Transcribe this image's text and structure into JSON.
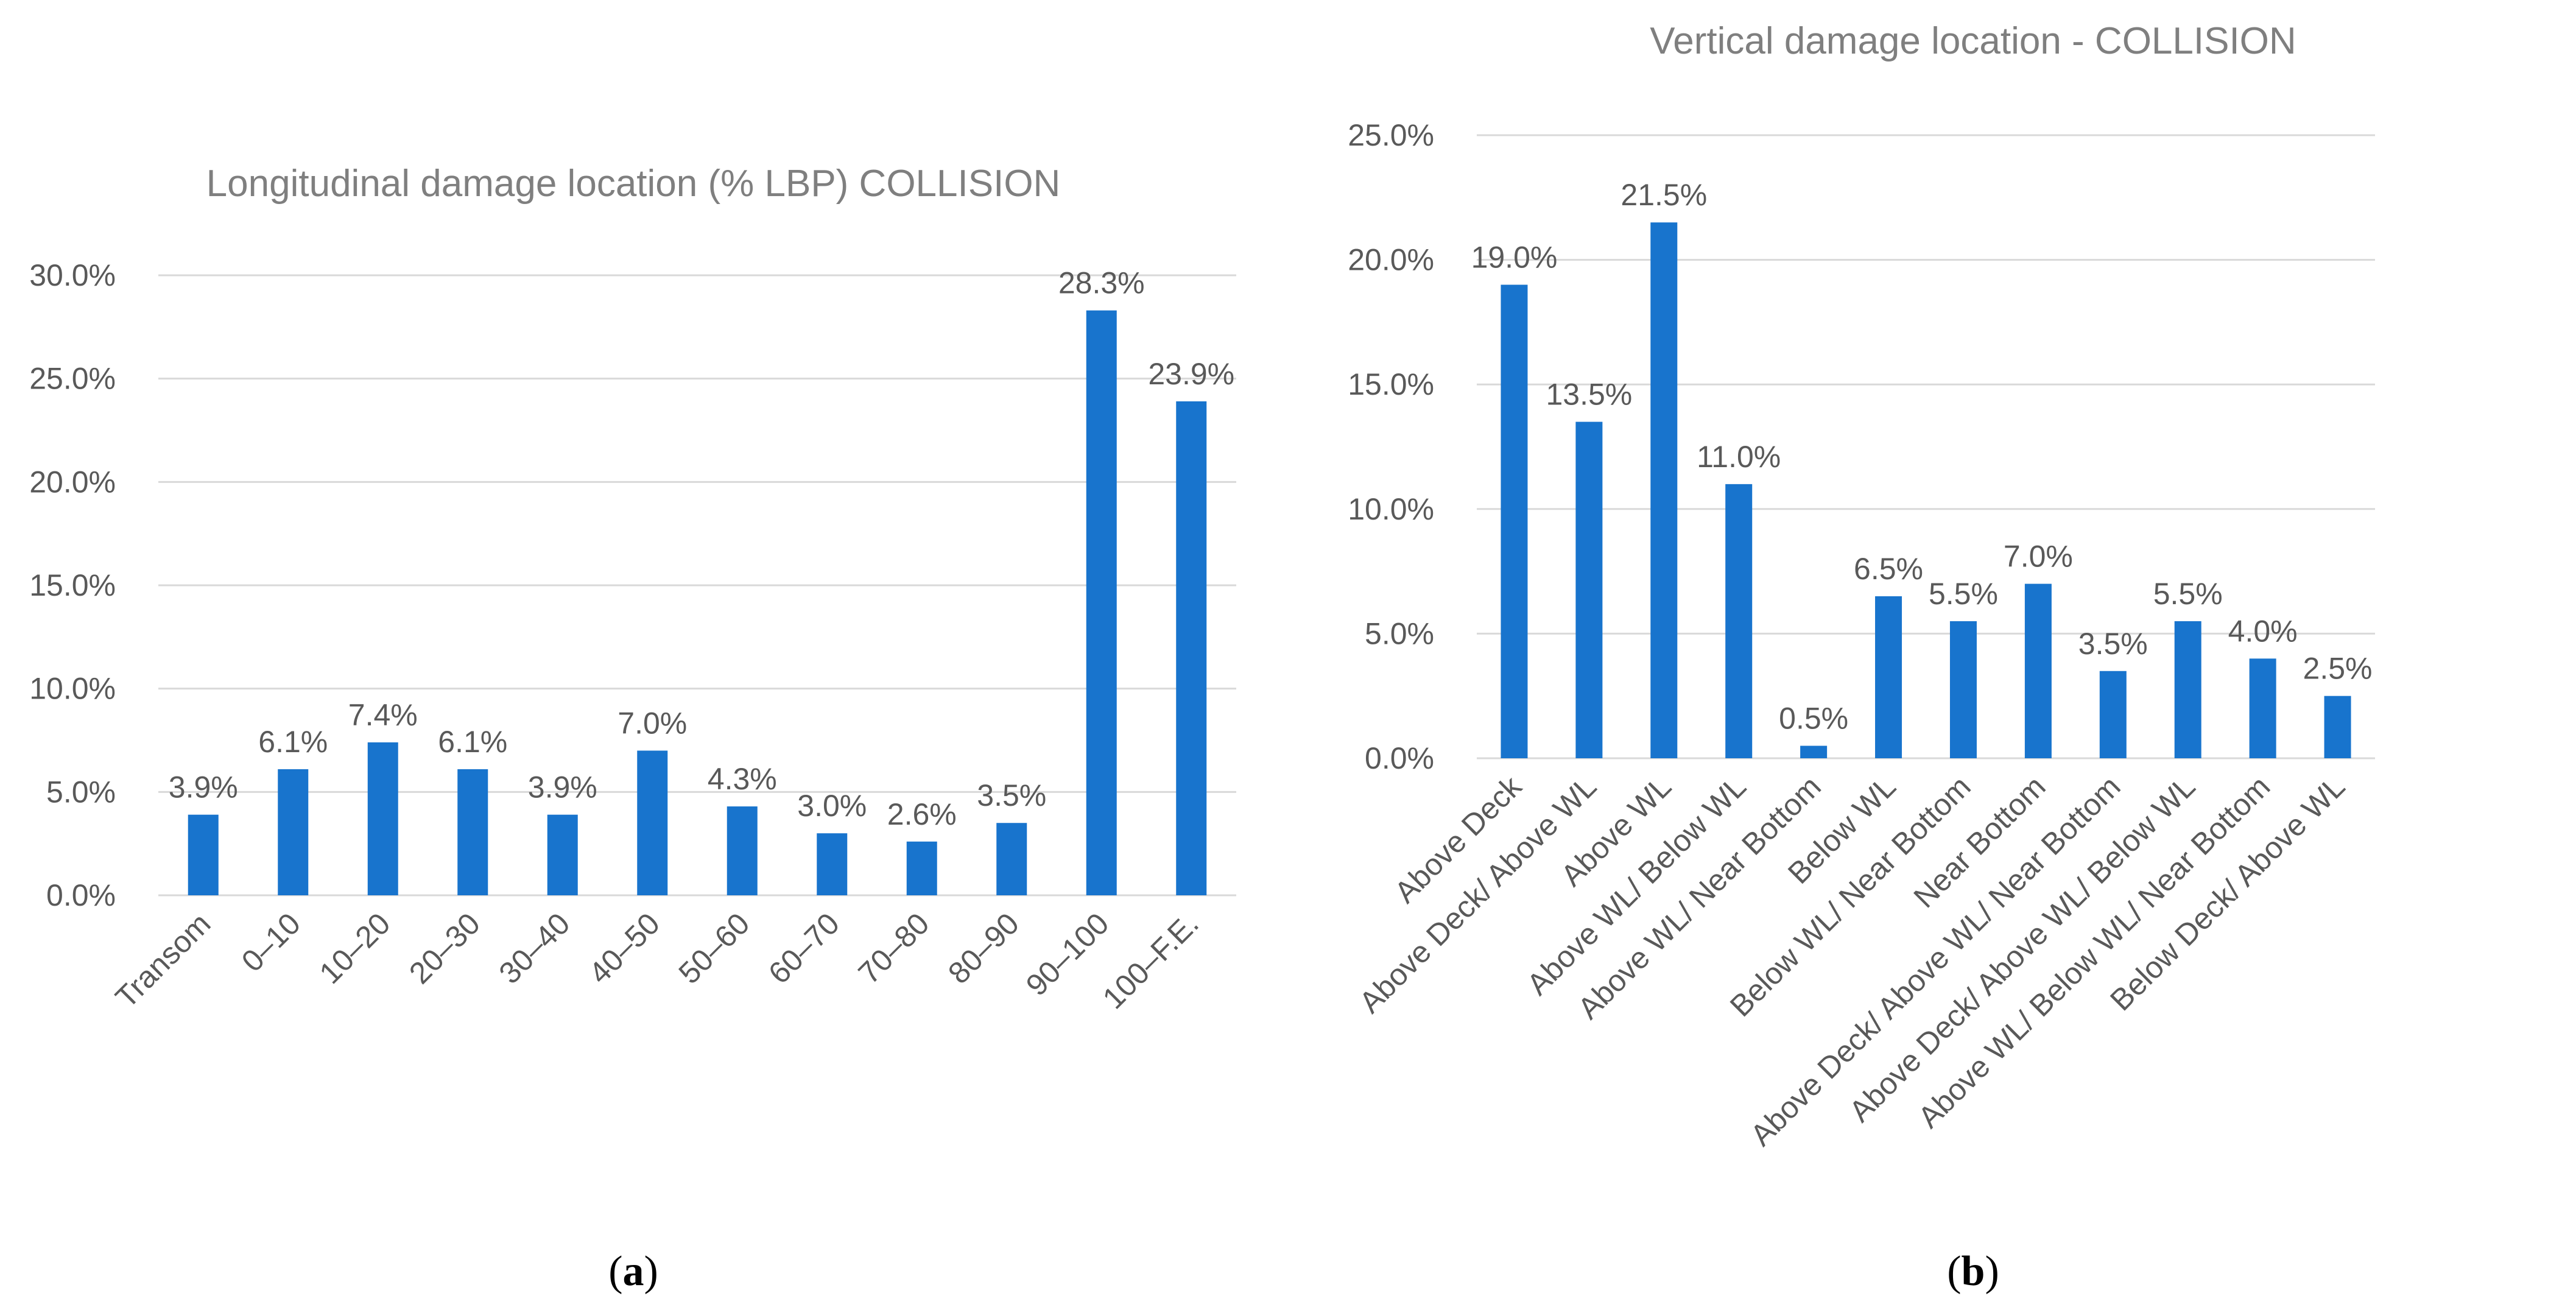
{
  "chart_data": [
    {
      "type": "bar",
      "panel": "a",
      "title": "Longitudinal damage location (% LBP) COLLISION",
      "categories": [
        "Transom",
        "0–10",
        "10–20",
        "20–30",
        "30–40",
        "40–50",
        "50–60",
        "60–70",
        "70–80",
        "80–90",
        "90–100",
        "100–F.E."
      ],
      "values": [
        3.9,
        6.1,
        7.4,
        6.1,
        3.9,
        7.0,
        4.3,
        3.0,
        2.6,
        3.5,
        28.3,
        23.9
      ],
      "data_labels": [
        "3.9%",
        "6.1%",
        "7.4%",
        "6.1%",
        "3.9%",
        "7.0%",
        "4.3%",
        "3.0%",
        "2.6%",
        "3.5%",
        "28.3%",
        "23.9%"
      ],
      "yticks": [
        "0.0%",
        "5.0%",
        "10.0%",
        "15.0%",
        "20.0%",
        "25.0%",
        "30.0%"
      ],
      "ylim": [
        0,
        30
      ],
      "xlabel": "",
      "ylabel": "",
      "grid": true,
      "color": "#1874cd"
    },
    {
      "type": "bar",
      "panel": "b",
      "title": "Vertical damage location - COLLISION",
      "categories": [
        "Above Deck",
        "Above Deck/ Above WL",
        "Above WL",
        "Above WL/ Below WL",
        "Above WL/ Near Bottom",
        "Below WL",
        "Below WL/ Near Bottom",
        "Near Bottom",
        "Above Deck/ Above WL/ Near Bottom",
        "Above Deck/ Above WL/ Below WL",
        "Above WL/ Below WL/ Near Bottom",
        "Below Deck/ Above WL"
      ],
      "values": [
        19.0,
        13.5,
        21.5,
        11.0,
        0.5,
        6.5,
        5.5,
        7.0,
        3.5,
        5.5,
        4.0,
        2.5
      ],
      "data_labels": [
        "19.0%",
        "13.5%",
        "21.5%",
        "11.0%",
        "0.5%",
        "6.5%",
        "5.5%",
        "7.0%",
        "3.5%",
        "5.5%",
        "4.0%",
        "2.5%"
      ],
      "yticks": [
        "0.0%",
        "5.0%",
        "10.0%",
        "15.0%",
        "20.0%",
        "25.0%"
      ],
      "ylim": [
        0,
        25
      ],
      "xlabel": "",
      "ylabel": "",
      "grid": true,
      "color": "#1874cd"
    }
  ],
  "captions": [
    {
      "open": "(",
      "letter": "a",
      "close": ")"
    },
    {
      "open": "(",
      "letter": "b",
      "close": ")"
    }
  ]
}
